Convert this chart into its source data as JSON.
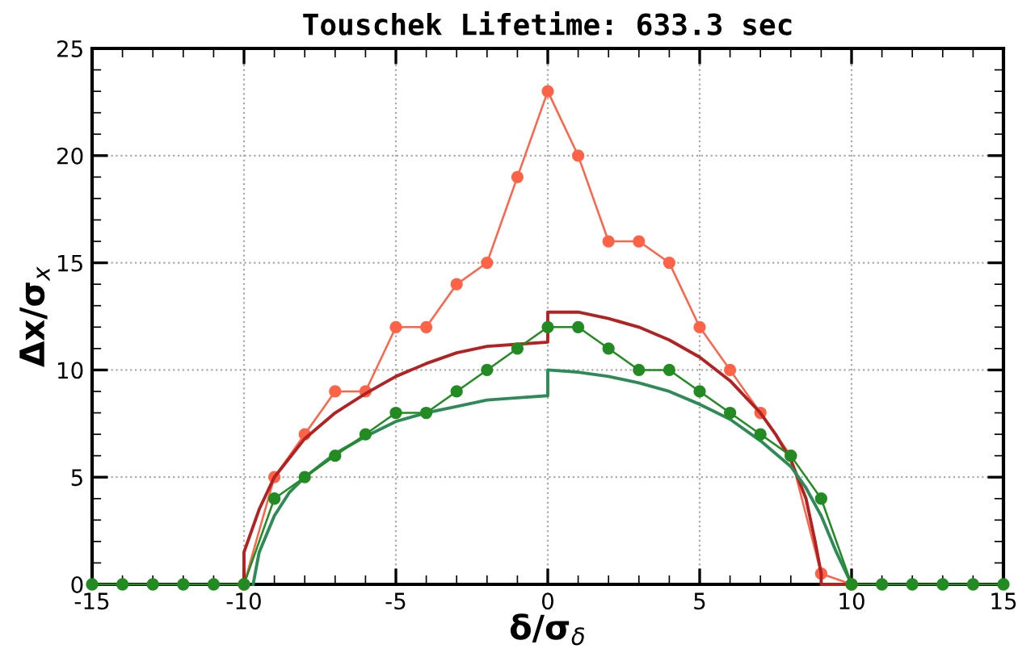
{
  "chart_data": {
    "type": "line",
    "title": "Touschek Lifetime: 633.3 sec",
    "xlabel": "δ/σ$_{δ}$",
    "ylabel": "Δx/σ$_{x}$",
    "xlim": [
      -15,
      15
    ],
    "xticks": [
      -15,
      -10,
      -5,
      0,
      5,
      10,
      15
    ],
    "ylim": [
      0,
      25
    ],
    "yticks": [
      0,
      5,
      10,
      15,
      20,
      25
    ],
    "grid": true,
    "series": [
      {
        "color": "#ff6347",
        "marker": "circle",
        "x": [
          -10,
          -9,
          -8,
          -7,
          -6,
          -5,
          -4,
          -3,
          -2,
          -1,
          0,
          1,
          2,
          3,
          4,
          5,
          6,
          7,
          8,
          9,
          10
        ],
        "values": [
          0,
          5,
          7,
          9,
          9,
          12,
          12,
          14,
          15,
          19,
          23,
          20,
          16,
          16,
          15,
          12,
          10,
          8,
          6,
          0.5,
          0
        ]
      },
      {
        "color": "#b22222",
        "marker": "none",
        "x": [
          -10,
          -10,
          -9.5,
          -9,
          -8,
          -7,
          -6,
          -5,
          -4,
          -3,
          -2,
          -1,
          0,
          0,
          1,
          2,
          3,
          4,
          5,
          6,
          7,
          7.5,
          8,
          8.5,
          8.8,
          9,
          9,
          10
        ],
        "values": [
          0,
          1.5,
          3.5,
          5,
          6.8,
          8,
          8.9,
          9.7,
          10.3,
          10.8,
          11.1,
          11.2,
          11.3,
          12.7,
          12.7,
          12.4,
          12,
          11.4,
          10.6,
          9.5,
          8,
          7,
          5.8,
          4,
          2,
          0.5,
          0,
          0
        ]
      },
      {
        "color": "#2e8b57",
        "marker": "none",
        "x": [
          -9.7,
          -9.5,
          -9,
          -8.5,
          -8,
          -7,
          -6,
          -5,
          -4,
          -3,
          -2,
          -1,
          0,
          0,
          1,
          2,
          3,
          4,
          5,
          6,
          7,
          8,
          8.5,
          9,
          9.5,
          10
        ],
        "values": [
          0,
          1.5,
          3.2,
          4.3,
          5,
          6.1,
          6.9,
          7.6,
          8,
          8.3,
          8.6,
          8.7,
          8.8,
          10,
          9.9,
          9.7,
          9.4,
          9,
          8.4,
          7.7,
          6.7,
          5.5,
          4.5,
          3.2,
          1.5,
          0
        ]
      },
      {
        "color": "#228b22",
        "marker": "circle",
        "x": [
          -15,
          -14,
          -13,
          -12,
          -11,
          -10,
          -9,
          -8,
          -7,
          -6,
          -5,
          -4,
          -3,
          -2,
          -1,
          0,
          1,
          2,
          3,
          4,
          5,
          6,
          7,
          8,
          9,
          10,
          11,
          12,
          13,
          14,
          15
        ],
        "values": [
          0,
          0,
          0,
          0,
          0,
          0,
          4,
          5,
          6,
          7,
          8,
          8,
          9,
          10,
          11,
          12,
          12,
          11,
          10,
          10,
          9,
          8,
          7,
          6,
          4,
          0,
          0,
          0,
          0,
          0,
          0
        ]
      }
    ]
  }
}
